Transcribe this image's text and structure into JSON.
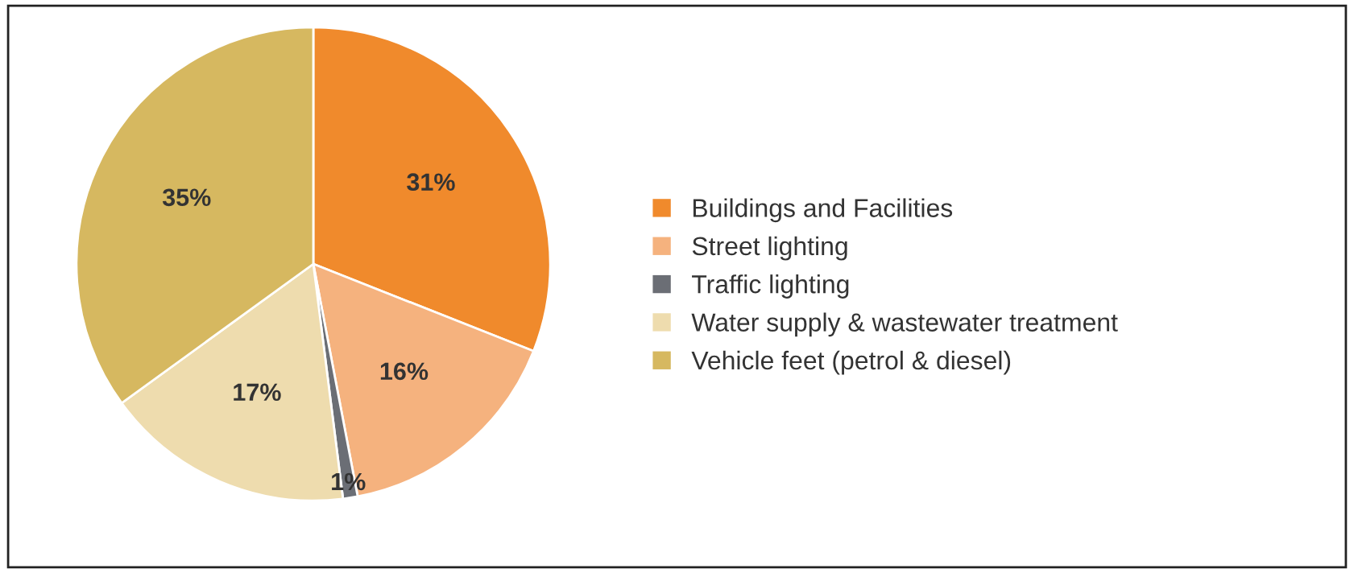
{
  "chart_data": {
    "type": "pie",
    "categories": [
      "Buildings and Facilities",
      "Street lighting",
      "Traffic lighting",
      "Water supply & wastewater treatment",
      "Vehicle feet (petrol & diesel)"
    ],
    "values": [
      31,
      16,
      1,
      17,
      35
    ],
    "colors": [
      "#f08a2c",
      "#f5b27e",
      "#6b6e75",
      "#eedcae",
      "#d6b860"
    ],
    "value_labels": [
      "31%",
      "16%",
      "1%",
      "17%",
      "35%"
    ],
    "legend": "right"
  }
}
